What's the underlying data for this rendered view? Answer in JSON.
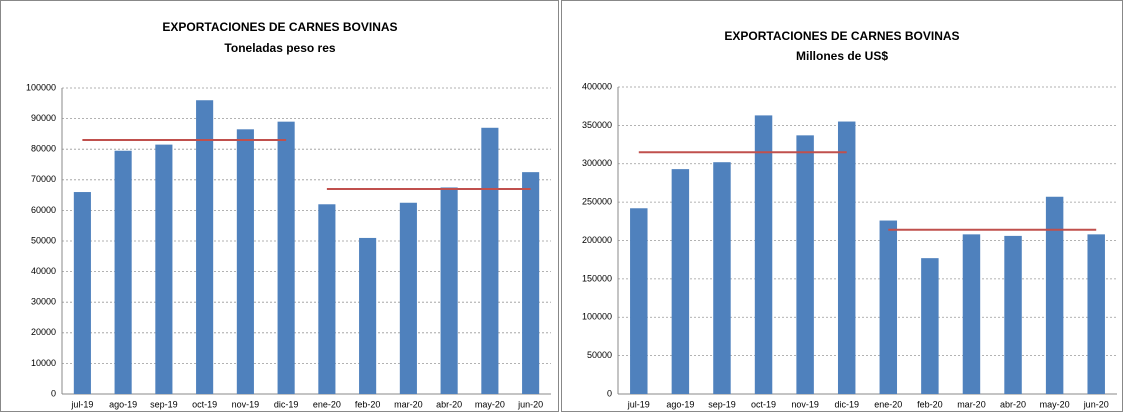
{
  "chart_data": [
    {
      "type": "bar",
      "title": "EXPORTACIONES DE CARNES BOVINAS",
      "subtitle": "Toneladas peso res",
      "categories": [
        "jul-19",
        "ago-19",
        "sep-19",
        "oct-19",
        "nov-19",
        "dic-19",
        "ene-20",
        "feb-20",
        "mar-20",
        "abr-20",
        "may-20",
        "jun-20"
      ],
      "values": [
        66000,
        79500,
        81500,
        96000,
        86500,
        89000,
        62000,
        51000,
        62500,
        67500,
        87000,
        72500
      ],
      "color": "#4f81bd",
      "ylim": [
        0,
        100000
      ],
      "yticks": [
        0,
        10000,
        20000,
        30000,
        40000,
        50000,
        60000,
        70000,
        80000,
        90000,
        100000
      ],
      "grid": true,
      "reference_lines": [
        {
          "value": 83000,
          "start": "jul-19",
          "end": "dic-19",
          "color": "#c0504d"
        },
        {
          "value": 67000,
          "start": "ene-20",
          "end": "jun-20",
          "color": "#c0504d"
        }
      ]
    },
    {
      "type": "bar",
      "title": "EXPORTACIONES DE CARNES BOVINAS",
      "subtitle": "Millones de US$",
      "categories": [
        "jul-19",
        "ago-19",
        "sep-19",
        "oct-19",
        "nov-19",
        "dic-19",
        "ene-20",
        "feb-20",
        "mar-20",
        "abr-20",
        "may-20",
        "jun-20"
      ],
      "values": [
        242000,
        293000,
        302000,
        363000,
        337000,
        355000,
        226000,
        177000,
        208000,
        206000,
        257000,
        208000
      ],
      "color": "#4f81bd",
      "ylim": [
        0,
        400000
      ],
      "yticks": [
        0,
        50000,
        100000,
        150000,
        200000,
        250000,
        300000,
        350000,
        400000
      ],
      "grid": true,
      "reference_lines": [
        {
          "value": 315000,
          "start": "jul-19",
          "end": "dic-19",
          "color": "#c0504d"
        },
        {
          "value": 214000,
          "start": "ene-20",
          "end": "jun-20",
          "color": "#c0504d"
        }
      ]
    }
  ]
}
